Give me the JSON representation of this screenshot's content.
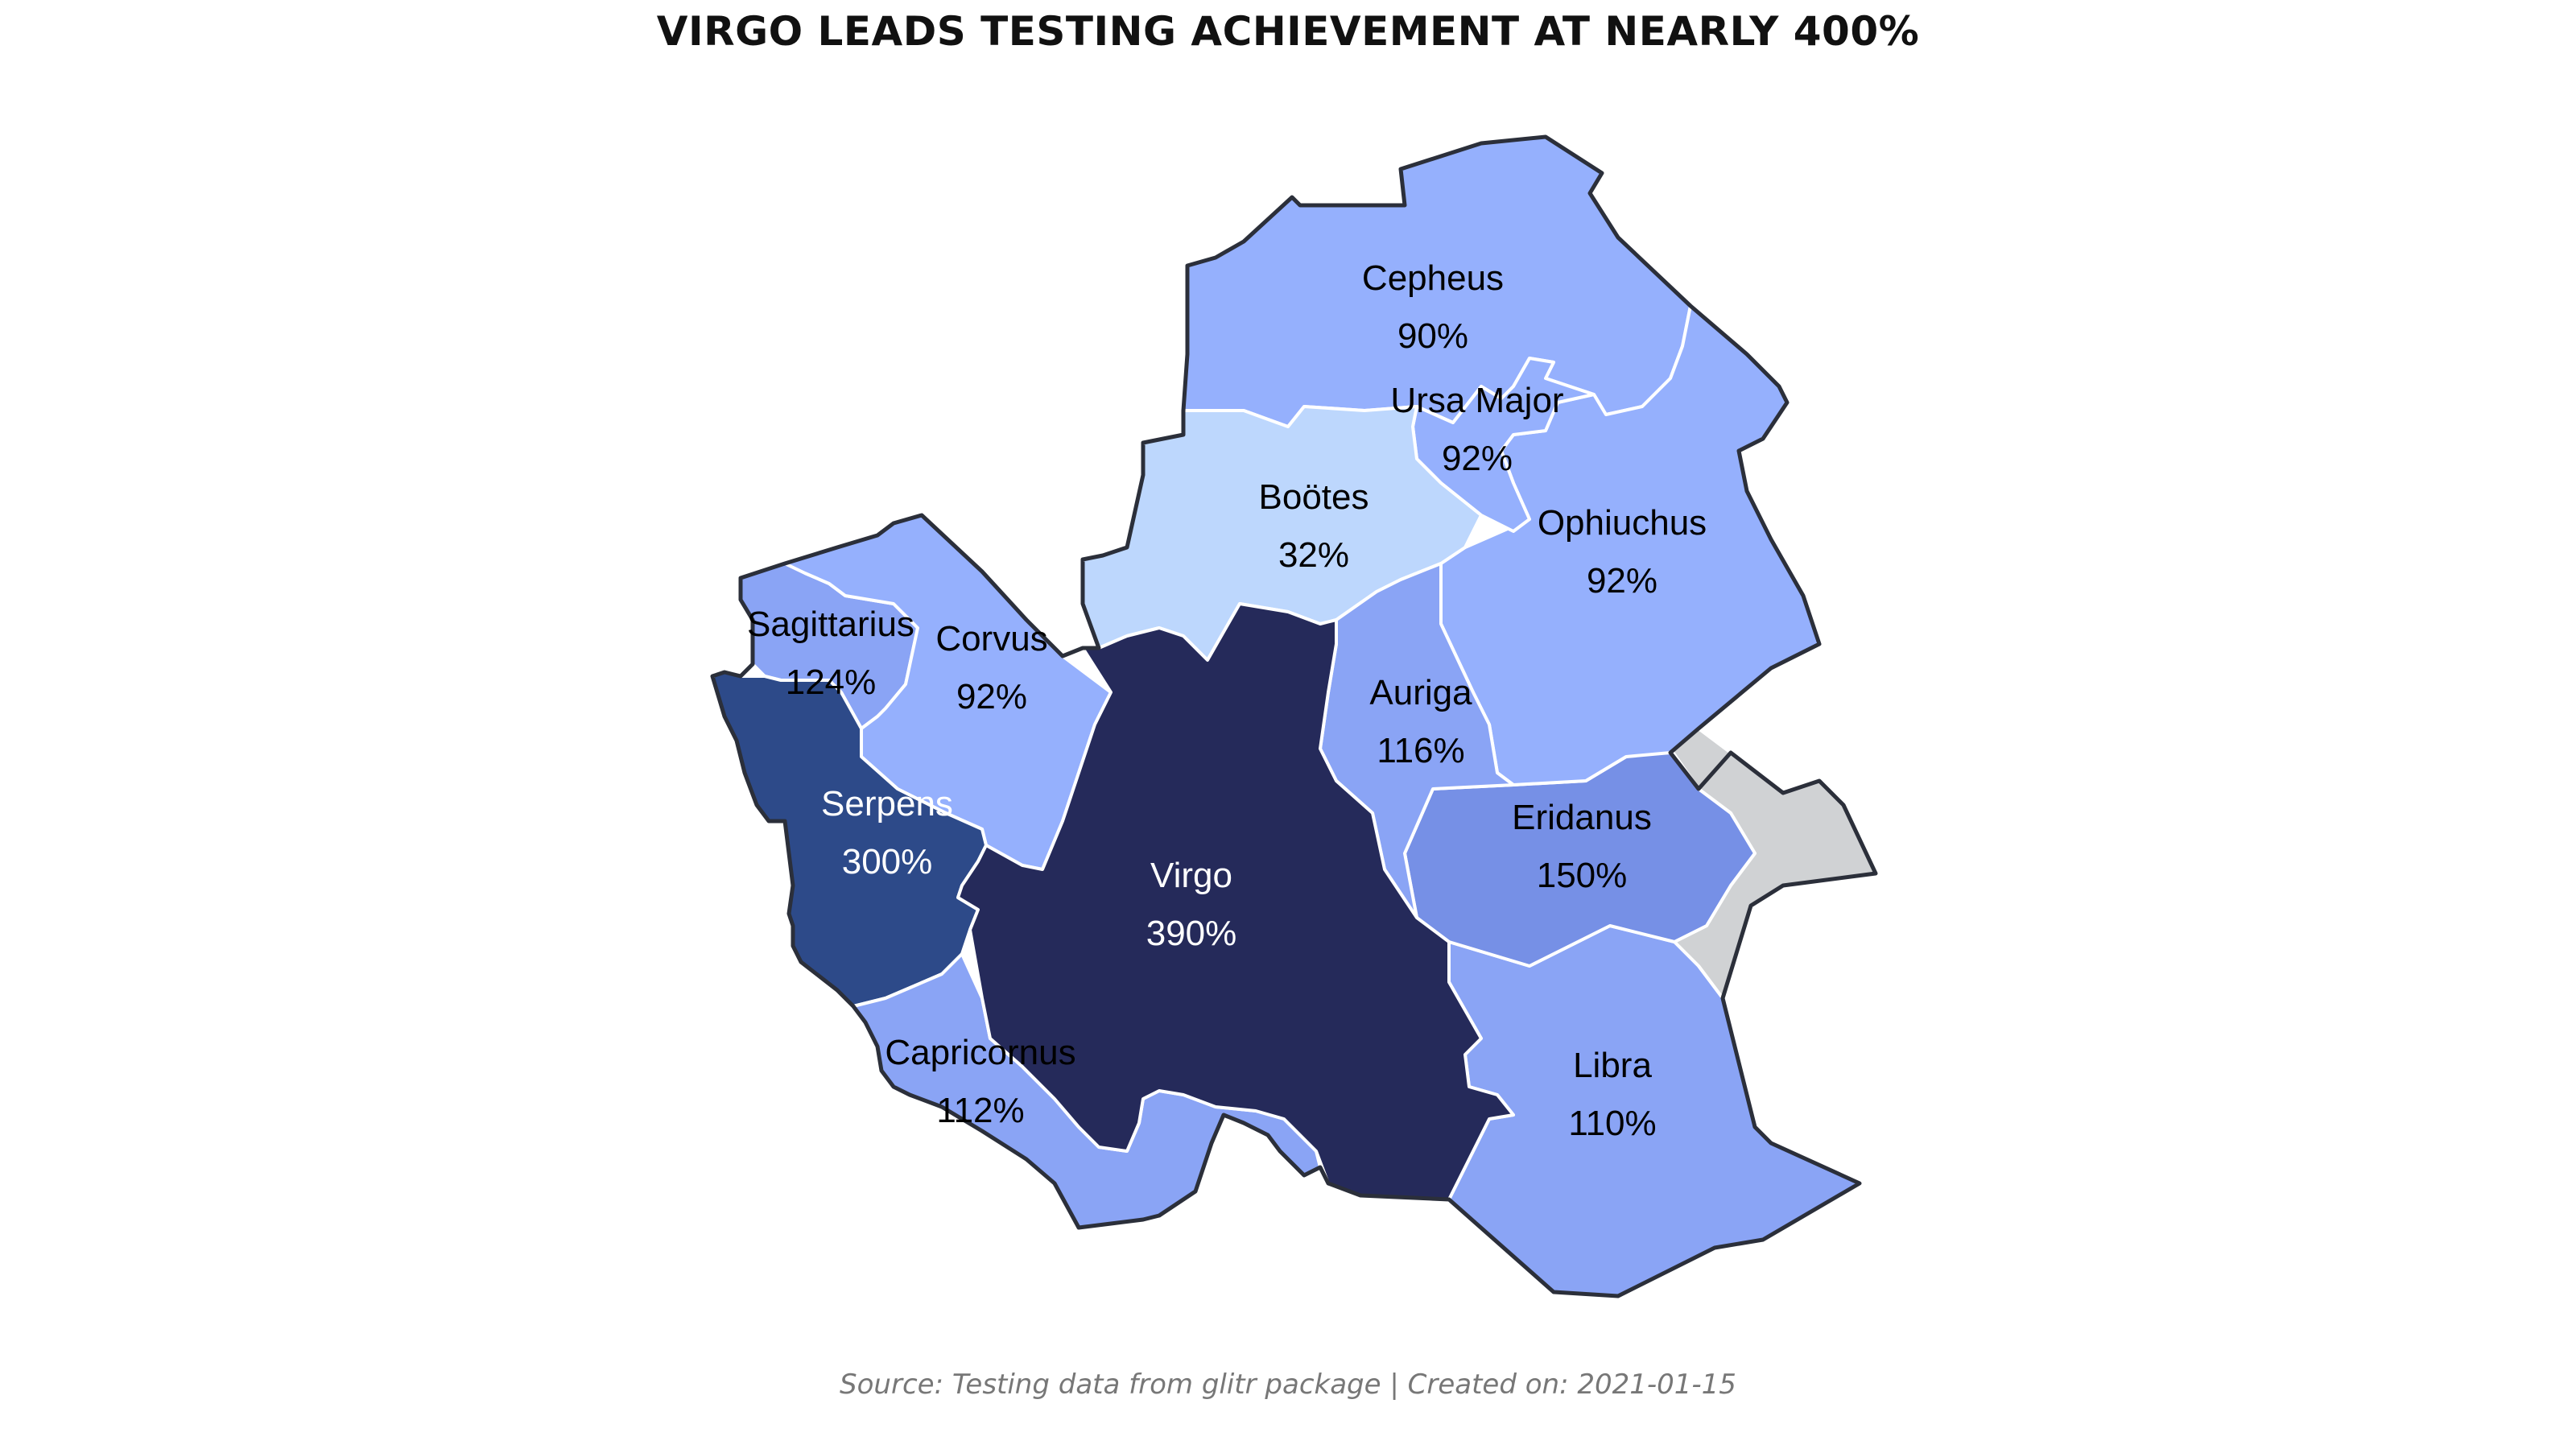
{
  "title": "VIRGO LEADS TESTING ACHIEVEMENT AT NEARLY 400%",
  "caption": "Source: Testing data from glitr package | Created on: 2021-01-15",
  "colors": {
    "virgo": "#252a5a",
    "serpens": "#2d4a89",
    "eridanus": "#7690e6",
    "mid": "#8aa4f5",
    "light": "#95b0fd",
    "lightest": "#bdd7fd",
    "no_data": "#d0d2d4"
  },
  "regions": [
    {
      "id": "cepheus",
      "name": "Cepheus",
      "value": "90%"
    },
    {
      "id": "ursa_major",
      "name": "Ursa Major",
      "value": "92%"
    },
    {
      "id": "bootes",
      "name": "Boötes",
      "value": "32%"
    },
    {
      "id": "ophiuchus",
      "name": "Ophiuchus",
      "value": "92%"
    },
    {
      "id": "sagittarius",
      "name": "Sagittarius",
      "value": "124%"
    },
    {
      "id": "corvus",
      "name": "Corvus",
      "value": "92%"
    },
    {
      "id": "auriga",
      "name": "Auriga",
      "value": "116%"
    },
    {
      "id": "eridanus",
      "name": "Eridanus",
      "value": "150%"
    },
    {
      "id": "serpens",
      "name": "Serpens",
      "value": "300%"
    },
    {
      "id": "virgo",
      "name": "Virgo",
      "value": "390%"
    },
    {
      "id": "capricornus",
      "name": "Capricornus",
      "value": "112%"
    },
    {
      "id": "libra",
      "name": "Libra",
      "value": "110%"
    }
  ]
}
